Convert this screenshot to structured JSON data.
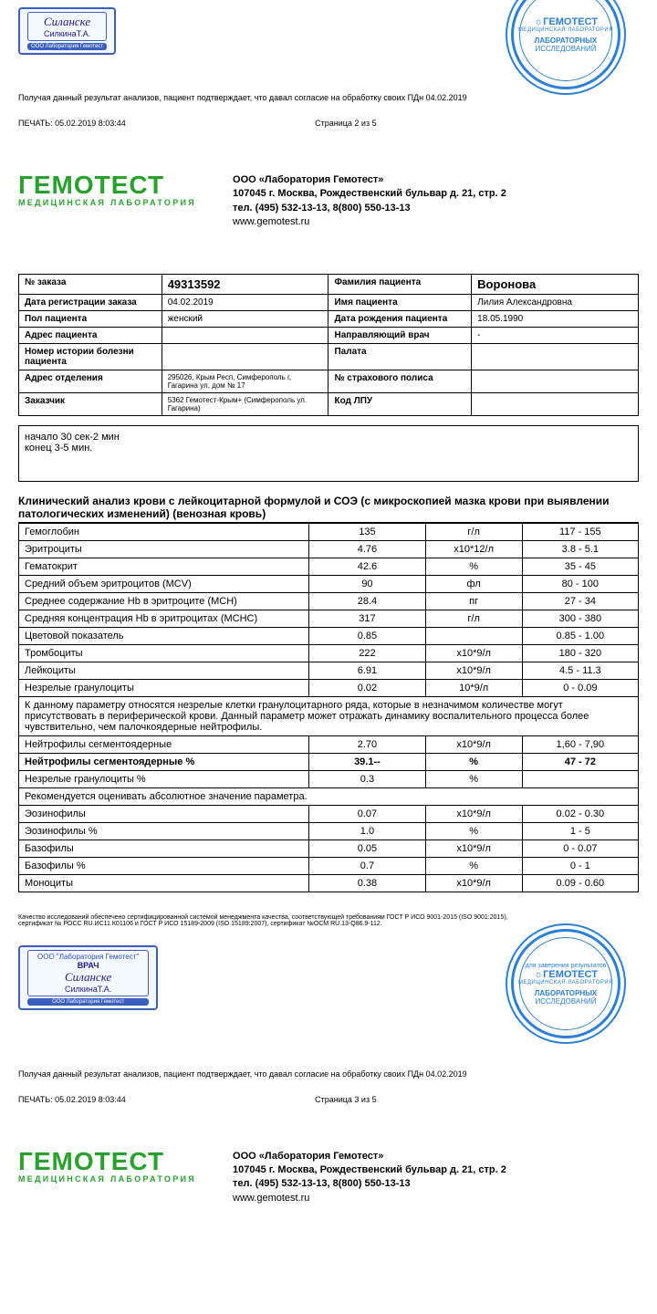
{
  "signature": {
    "top": "ООО \"Лаборатория Гемотест\"",
    "doctor_label": "ВРАЧ",
    "name": "Силанске",
    "sub": "СилкинаТ.А.",
    "strip": "ООО Лаборатория Гемотест"
  },
  "stamp": {
    "brand": "ГЕМОТЕСТ",
    "sublab": "МЕДИЦИНСКАЯ ЛАБОРАТОРИЯ",
    "mid1": "для заверения результатов",
    "mid2": "ЛАБОРАТОРНЫХ",
    "mid3": "ИССЛЕДОВАНИЙ"
  },
  "consent": "Получая данный результат анализов, пациент подтверждает, что давал согласие на обработку своих ПДн 04.02.2019",
  "print": {
    "label": "ПЕЧАТЬ: 05.02.2019 8:03:44",
    "page2": "Страница 2 из 5",
    "page3": "Страница 3 из 5"
  },
  "logo": {
    "main": "ГЕМОТЕСТ",
    "sub": "МЕДИЦИНСКАЯ ЛАБОРАТОРИЯ"
  },
  "company": {
    "l1": "ООО «Лаборатория Гемотест»",
    "l2": "107045 г. Москва, Рождественский бульвар д. 21, стр. 2",
    "l3": "тел. (495) 532-13-13, 8(800) 550-13-13",
    "l4": "www.gemotest.ru"
  },
  "info": {
    "order_lbl": "№ заказа",
    "order": "49313592",
    "surname_lbl": "Фамилия пациента",
    "surname": "Воронова",
    "regdate_lbl": "Дата регистрации заказа",
    "regdate": "04.02.2019",
    "name_lbl": "Имя пациента",
    "name": "Лилия Александровна",
    "sex_lbl": "Пол пациента",
    "sex": "женский",
    "dob_lbl": "Дата рождения пациента",
    "dob": "18.05.1990",
    "addr_lbl": "Адрес пациента",
    "addr": "",
    "doctor_lbl": "Направляющий врач",
    "doctor": "-",
    "hist_lbl": "Номер истории болезни пациента",
    "hist": "",
    "ward_lbl": "Палата",
    "ward": "",
    "dept_lbl": "Адрес отделения",
    "dept": "295026, Крым Респ, Симферополь г, Гагарина ул, дом № 17",
    "ins_lbl": "№ страхового полиса",
    "ins": "",
    "cust_lbl": "Заказчик",
    "cust": "5362 Гемотест-Крым+ (Симферополь ул. Гагарина)",
    "lpu_lbl": "Код ЛПУ",
    "lpu": ""
  },
  "notes": {
    "l1": "начало 30 сек-2 мин",
    "l2": "конец 3-5 мин."
  },
  "section_title": "Клинический анализ крови с лейкоцитарной формулой и СОЭ (с микроскопией мазка крови при выявлении патологических изменений) (венозная кровь)",
  "rows": [
    {
      "n": "Гемоглобин",
      "v": "135",
      "u": "г/л",
      "r": "117 - 155"
    },
    {
      "n": "Эритроциты",
      "v": "4.76",
      "u": "х10*12/л",
      "r": "3.8 - 5.1"
    },
    {
      "n": "Гематокрит",
      "v": "42.6",
      "u": "%",
      "r": "35 - 45"
    },
    {
      "n": "Средний объем эритроцитов (MCV)",
      "v": "90",
      "u": "фл",
      "r": "80 - 100"
    },
    {
      "n": "Среднее содержание Hb в эритроците (MCH)",
      "v": "28.4",
      "u": "пг",
      "r": "27 - 34"
    },
    {
      "n": "Средняя концентрация Hb в эритроцитах (MCHC)",
      "v": "317",
      "u": "г/л",
      "r": "300 - 380"
    },
    {
      "n": "Цветовой показатель",
      "v": "0.85",
      "u": "",
      "r": "0.85 - 1.00"
    },
    {
      "n": "Тромбоциты",
      "v": "222",
      "u": "х10*9/л",
      "r": "180 - 320"
    },
    {
      "n": "Лейкоциты",
      "v": "6.91",
      "u": "х10*9/л",
      "r": "4.5 - 11.3"
    },
    {
      "n": " Незрелые гранулоциты",
      "v": "0.02",
      "u": "10*9/л",
      "r": "0 - 0.09"
    }
  ],
  "note1": "К данному параметру относятся незрелые клетки гранулоцитарного ряда, которые  в незначимом количестве могут присутствовать в периферической крови. Данный параметр может отражать динамику воспалительного процесса более чувствительно, чем палочкоядерные нейтрофилы.",
  "rows2": [
    {
      "n": "Нейтрофилы сегментоядерные",
      "v": "2.70",
      "u": "х10*9/л",
      "r": "1,60 - 7,90",
      "bold": false
    },
    {
      "n": "Нейтрофилы сегментоядерные %",
      "v": "39.1--",
      "u": "%",
      "r": "47 - 72",
      "bold": true
    },
    {
      "n": " Незрелые гранулоциты %",
      "v": "0.3",
      "u": "%",
      "r": "",
      "bold": false
    }
  ],
  "note2": "Рекомендуется оценивать абсолютное значение параметра.",
  "rows3": [
    {
      "n": "Эозинофилы",
      "v": "0.07",
      "u": "х10*9/л",
      "r": "0.02 - 0.30"
    },
    {
      "n": "Эозинофилы %",
      "v": "1.0",
      "u": "%",
      "r": "1 - 5"
    },
    {
      "n": "Базофилы",
      "v": "0.05",
      "u": "х10*9/л",
      "r": "0 - 0.07"
    },
    {
      "n": "Базофилы %",
      "v": "0.7",
      "u": "%",
      "r": "0 - 1"
    },
    {
      "n": "Моноциты",
      "v": "0.38",
      "u": "х10*9/л",
      "r": "0.09 - 0.60"
    }
  ],
  "quality": "Качество исследований обеспечено сертифицированной системой менеджмента качества, соответствующей требованиям ГОСТ Р ИСО 9001-2015 (ISO 9001:2015), сертификат № РОСС RU.ИС11.К01106 и ГОСТ Р ИСО 15189-2009 (ISO 15189:2007), сертификат №ОСМ RU.13-Q86.9-112."
}
